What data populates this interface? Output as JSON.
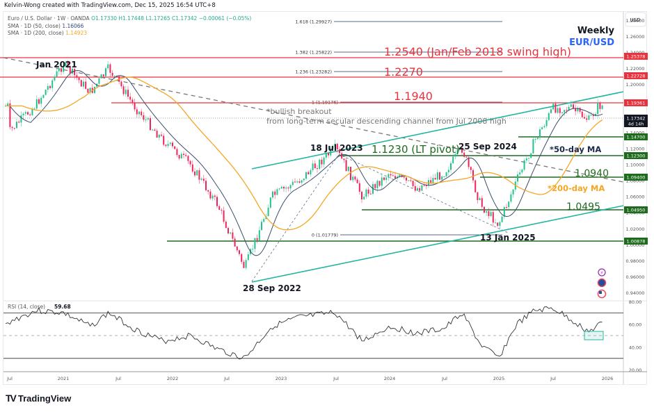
{
  "header": {
    "credit": "Kelvin-Wong created with TradingView.com, Dec 15, 2025 16:54 UTC+8",
    "symbol_line": "Euro / U.S. Dollar · 1W · OANDA",
    "ohlc": {
      "open": "O1.17330",
      "high": "H1.17448",
      "low": "L1.17265",
      "close": "C1.17342",
      "change": "−0.00061 (−0.05%)"
    },
    "sma50_label": "SMA · 1D (50, close)",
    "sma50_value": "1.16066",
    "sma200_label": "SMA · 1D (200, close)",
    "sma200_value": "1.14923"
  },
  "branding": {
    "logo_text": "TradingView"
  },
  "colors": {
    "up": "#22c38a",
    "down": "#f0245a",
    "red_level": "#e8333f",
    "green_level": "#1e6b1e",
    "channel": "#22b5a0",
    "sma50": "#3b4d6e",
    "sma200": "#f5a623",
    "fib": "#5a6a85"
  },
  "chart_data": [
    {
      "type": "candlestick",
      "title": "Weekly",
      "subtitle": "EUR/USD",
      "xlabel": "",
      "ylabel": "USD",
      "currency_label": "USD",
      "ylim": [
        0.93,
        1.29
      ],
      "x_ticks": [
        "Jul",
        "2021",
        "Jul",
        "2022",
        "Jul",
        "2023",
        "Jul",
        "2024",
        "Jul",
        "2025",
        "Jul",
        "2026"
      ],
      "y_ticks": [
        "1.28000",
        "1.26000",
        "1.24000",
        "1.22000",
        "1.20000",
        "1.18000",
        "1.16000",
        "1.14000",
        "1.12000",
        "1.10000",
        "1.08000",
        "1.06000",
        "1.04000",
        "1.02000",
        "1.00000",
        "0.98000",
        "0.96000",
        "0.94000"
      ],
      "price_labels": [
        {
          "value": "1.25378",
          "color": "red"
        },
        {
          "value": "1.22728",
          "color": "red"
        },
        {
          "value": "1.19361",
          "color": "red"
        },
        {
          "value": "1.17342",
          "sub": "4d 14h",
          "color": "black"
        },
        {
          "value": "1.14700",
          "color": "green"
        },
        {
          "value": "1.12300",
          "color": "green"
        },
        {
          "value": "1.09400",
          "color": "green"
        },
        {
          "value": "1.04950",
          "color": "green"
        },
        {
          "value": "1.00878",
          "color": "green"
        }
      ],
      "fib_levels": [
        {
          "ratio": "1.618",
          "label": "1.618 (1.29927)"
        },
        {
          "ratio": "1.382",
          "label": "1.382 (1.25822)"
        },
        {
          "ratio": "1.236",
          "label": "1.236 (1.23282)"
        },
        {
          "ratio": "1",
          "label": "1 (1.19176)"
        },
        {
          "ratio": "0",
          "label": "0 (1.01779)"
        }
      ],
      "annotations": [
        {
          "text": "1.2540 (Jan/Feb 2018 swing high)",
          "color": "red"
        },
        {
          "text": "1.2270",
          "color": "red"
        },
        {
          "text": "1.1940",
          "color": "red"
        },
        {
          "text": "1.1230 (LT pivot)",
          "color": "green"
        },
        {
          "text": "1.0940",
          "color": "green"
        },
        {
          "text": "1.0495",
          "color": "green"
        },
        {
          "text": "Jan 2021",
          "color": "black"
        },
        {
          "text": "28 Sep 2022",
          "color": "black"
        },
        {
          "text": "18 Jul 2023",
          "color": "black"
        },
        {
          "text": "25 Sep 2024",
          "color": "black"
        },
        {
          "text": "13 Jan 2025",
          "color": "black"
        },
        {
          "text": "*bullish breakout",
          "color": "gray"
        },
        {
          "text": "from long-term secular descending channel from Jul 2008 high",
          "color": "gray"
        },
        {
          "text": "*50-day MA",
          "color": "navy"
        },
        {
          "text": "*200-day MA",
          "color": "orange"
        }
      ],
      "series": [
        {
          "name": "EUR/USD weekly close (approx)",
          "x": [
            "2020-07",
            "2020-10",
            "2021-01",
            "2021-04",
            "2021-06",
            "2021-09",
            "2021-12",
            "2022-03",
            "2022-06",
            "2022-09",
            "2022-12",
            "2023-03",
            "2023-07",
            "2023-10",
            "2024-01",
            "2024-04",
            "2024-07",
            "2024-09",
            "2024-11",
            "2025-01",
            "2025-03",
            "2025-05",
            "2025-07",
            "2025-09",
            "2025-11",
            "2025-12"
          ],
          "values": [
            1.14,
            1.175,
            1.225,
            1.19,
            1.22,
            1.17,
            1.13,
            1.1,
            1.05,
            0.97,
            1.06,
            1.08,
            1.12,
            1.06,
            1.09,
            1.07,
            1.09,
            1.12,
            1.05,
            1.025,
            1.08,
            1.13,
            1.17,
            1.17,
            1.155,
            1.173
          ]
        },
        {
          "name": "SMA 1D (50, close)",
          "last": 1.16066
        },
        {
          "name": "SMA 1D (200, close)",
          "last": 1.14923
        }
      ]
    },
    {
      "type": "line",
      "title": "RSI (14, close)",
      "value_label": "59.68",
      "ylim": [
        20,
        80
      ],
      "y_ticks": [
        "80.00",
        "60.00",
        "40.00",
        "20.00"
      ],
      "bands": [
        70,
        50,
        30
      ],
      "series": [
        {
          "name": "RSI",
          "x": [
            "2020-07",
            "2020-10",
            "2021-01",
            "2021-04",
            "2021-06",
            "2021-09",
            "2021-12",
            "2022-03",
            "2022-06",
            "2022-09",
            "2022-12",
            "2023-03",
            "2023-07",
            "2023-10",
            "2024-01",
            "2024-04",
            "2024-07",
            "2024-09",
            "2024-11",
            "2025-01",
            "2025-03",
            "2025-05",
            "2025-07",
            "2025-09",
            "2025-11",
            "2025-12"
          ],
          "values": [
            62,
            72,
            70,
            58,
            70,
            55,
            45,
            50,
            38,
            30,
            58,
            66,
            70,
            45,
            58,
            52,
            56,
            70,
            42,
            30,
            60,
            72,
            74,
            64,
            53,
            59.68
          ]
        }
      ]
    }
  ]
}
